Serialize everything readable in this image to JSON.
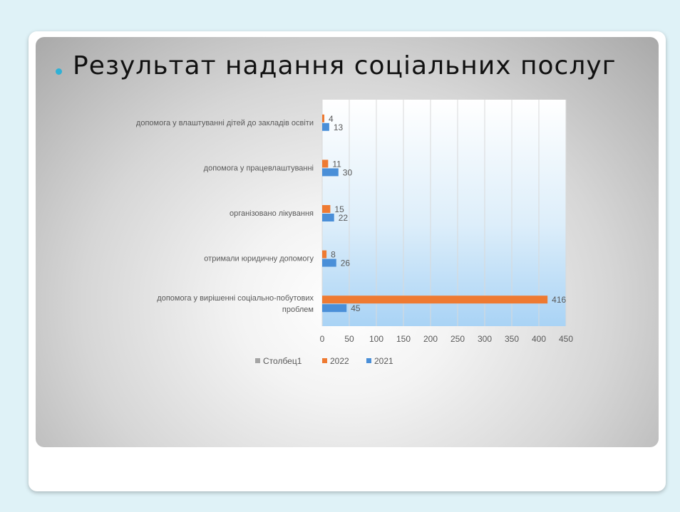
{
  "slide": {
    "title": "Результат надання соціальних послуг"
  },
  "colors": {
    "series_2021": "#4a8fd8",
    "series_2022": "#ee7a32",
    "series_stolbets": "#a5a5a5",
    "title_bullet": "#2fb1d6",
    "plot_grid": "#d9d9d9",
    "label_text": "#595959"
  },
  "chart_data": {
    "type": "bar",
    "orientation": "horizontal",
    "categories": [
      [
        "допомога у влаштуванні дітей до закладів освіти"
      ],
      [
        "допомога у працевлаштуванні"
      ],
      [
        "організовано лікування"
      ],
      [
        "отримали юридичну допомогу"
      ],
      [
        "допомога у вирішенні соціально-побутових",
        "проблем"
      ]
    ],
    "series": [
      {
        "name": "Столбец1",
        "values": [
          null,
          null,
          null,
          null,
          null
        ]
      },
      {
        "name": "2022",
        "values": [
          4,
          11,
          15,
          8,
          416
        ]
      },
      {
        "name": "2021",
        "values": [
          13,
          30,
          22,
          26,
          45
        ]
      }
    ],
    "xlim": [
      0,
      450
    ],
    "xticks": [
      0,
      50,
      100,
      150,
      200,
      250,
      300,
      350,
      400,
      450
    ],
    "grid": true,
    "legend_position": "bottom",
    "data_labels": true
  }
}
